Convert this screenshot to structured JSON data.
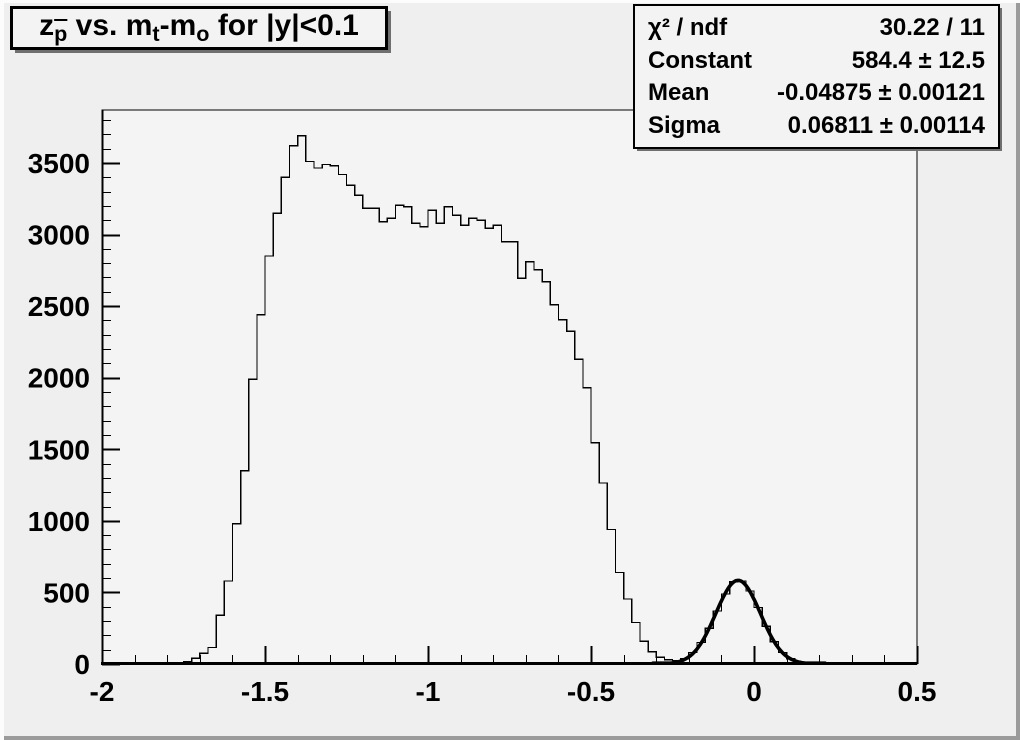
{
  "window": {
    "background": "#efefef"
  },
  "title": {
    "full": "z_p̄ vs. m_t-m_o for |y|<0.1",
    "z": "z",
    "p_sub": "p",
    "seg1": " vs. m",
    "t_sub": "t",
    "seg2": "-m",
    "o_sub": "o",
    "seg3": " for |y|<0.1"
  },
  "stats": {
    "rows": [
      {
        "label": "χ² / ndf",
        "value": "30.22 / 11"
      },
      {
        "label": "Constant",
        "value": "584.4 ± 12.5"
      },
      {
        "label": "Mean",
        "value": "-0.04875 ± 0.00121"
      },
      {
        "label": "Sigma",
        "value": "0.06811 ± 0.00114"
      }
    ]
  },
  "chart_data": {
    "type": "bar",
    "subtype": "step-histogram",
    "title": "z_p̄ vs. m_t-m_o for |y|<0.1",
    "xlabel": "",
    "ylabel": "",
    "xlim": [
      -2,
      0.5
    ],
    "ylim": [
      0,
      3870
    ],
    "grid": false,
    "legend": false,
    "bins": {
      "start": -2.0,
      "width": 0.025,
      "counts": [
        0,
        0,
        0,
        0,
        0,
        0,
        0,
        0,
        0,
        8,
        18,
        40,
        75,
        115,
        340,
        580,
        980,
        1350,
        1990,
        2440,
        2850,
        3150,
        3400,
        3620,
        3690,
        3510,
        3465,
        3490,
        3480,
        3420,
        3345,
        3275,
        3185,
        3185,
        3090,
        3115,
        3205,
        3195,
        3080,
        3055,
        3170,
        3080,
        3195,
        3135,
        3065,
        3115,
        3100,
        3045,
        3065,
        2950,
        2950,
        2695,
        2810,
        2755,
        2670,
        2510,
        2405,
        2325,
        2130,
        1930,
        1545,
        1265,
        940,
        640,
        455,
        290,
        160,
        85,
        47,
        30,
        25,
        38,
        80,
        150,
        250,
        370,
        490,
        575,
        580,
        510,
        395,
        265,
        155,
        80,
        36,
        14,
        5,
        2,
        0,
        0,
        0,
        0,
        0,
        0,
        0,
        0,
        0,
        0,
        0,
        0
      ]
    },
    "x_axis": {
      "major_ticks": [
        -2,
        -1.5,
        -1,
        -0.5,
        0,
        0.5
      ],
      "major_labels": [
        "-2",
        "-1.5",
        "-1",
        "-0.5",
        "0",
        "0.5"
      ],
      "minor_step": 0.1
    },
    "y_axis": {
      "major_ticks": [
        0,
        500,
        1000,
        1500,
        2000,
        2500,
        3000,
        3500
      ],
      "major_labels": [
        "0",
        "500",
        "1000",
        "1500",
        "2000",
        "2500",
        "3000",
        "3500"
      ],
      "minor_step": 100,
      "minor_max": 3800
    },
    "fit": {
      "shape": "gaussian",
      "chi2": 30.22,
      "ndf": 11,
      "constant": 584.4,
      "mean": -0.04875,
      "sigma": 0.06811,
      "draw_range": [
        -0.31,
        0.22
      ]
    },
    "colors": {
      "histogram_line": "#000000",
      "fit_line": "#000000",
      "frame_fill": "#f4f4f4",
      "canvas_fill": "#efefef"
    }
  }
}
